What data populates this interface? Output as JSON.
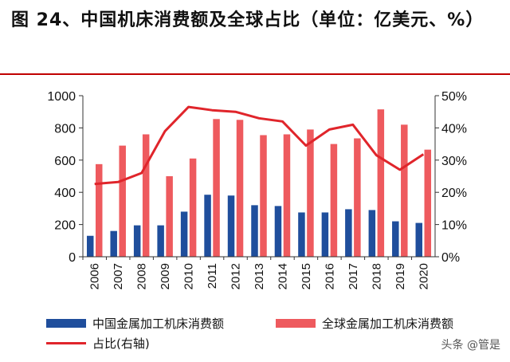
{
  "title": "图 24、中国机床消费额及全球占比（单位：亿美元、%）",
  "watermark": "头条 @管是",
  "chart_data": {
    "type": "bar",
    "categories": [
      "2006",
      "2007",
      "2008",
      "2009",
      "2010",
      "2011",
      "2012",
      "2013",
      "2014",
      "2015",
      "2016",
      "2017",
      "2018",
      "2019",
      "2020"
    ],
    "series": [
      {
        "name": "中国金属加工机床消费额",
        "type": "bar",
        "axis": "left",
        "color": "#1f4e9c",
        "values": [
          130,
          160,
          195,
          195,
          280,
          385,
          380,
          320,
          315,
          275,
          275,
          295,
          290,
          220,
          210
        ]
      },
      {
        "name": "全球金属加工机床消费额",
        "type": "bar",
        "axis": "left",
        "color": "#ee5a5e",
        "values": [
          575,
          690,
          760,
          500,
          610,
          855,
          850,
          755,
          760,
          790,
          700,
          735,
          915,
          820,
          665
        ]
      },
      {
        "name": "占比(右轴)",
        "type": "line",
        "axis": "right",
        "color": "#e0252b",
        "values": [
          22.6,
          23.2,
          26.0,
          39.0,
          46.5,
          45.5,
          45.0,
          43.0,
          42.0,
          34.5,
          39.5,
          41.0,
          31.5,
          27.0,
          31.8
        ]
      }
    ],
    "left_axis": {
      "min": 0,
      "max": 1000,
      "ticks": [
        "0",
        "200",
        "400",
        "600",
        "800",
        "1000"
      ]
    },
    "right_axis": {
      "min": 0,
      "max": 50,
      "ticks": [
        "0%",
        "10%",
        "20%",
        "30%",
        "40%",
        "50%"
      ]
    },
    "xlabel": "",
    "ylabel": "",
    "grid": false,
    "legend_position": "bottom"
  }
}
